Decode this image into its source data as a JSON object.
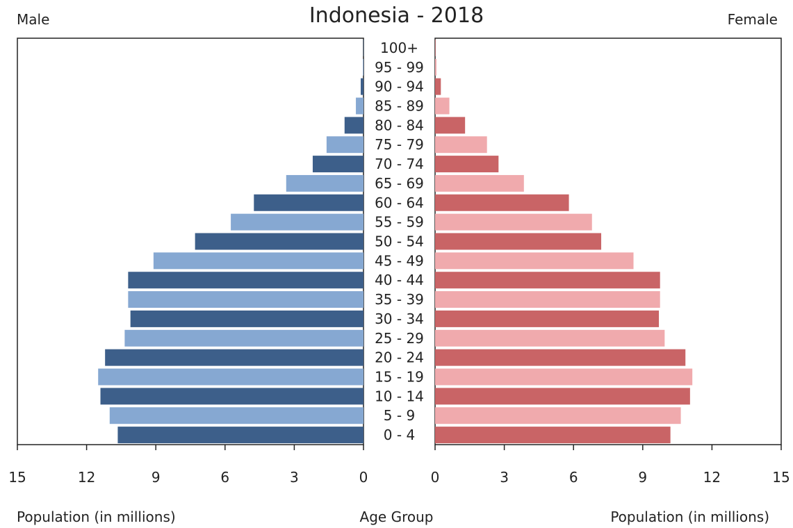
{
  "chart_data": {
    "type": "bar",
    "title": "Indonesia - 2018",
    "left_label": "Male",
    "right_label": "Female",
    "xlabel_left": "Population (in millions)",
    "xlabel_center": "Age Group",
    "xlabel_right": "Population (in millions)",
    "xlim": [
      0,
      15
    ],
    "xticks": [
      "15",
      "12",
      "9",
      "6",
      "3",
      "0"
    ],
    "xticks_right": [
      "0",
      "3",
      "6",
      "9",
      "12",
      "15"
    ],
    "categories": [
      "100+",
      "95 - 99",
      "90 - 94",
      "85 - 89",
      "80 - 84",
      "75 - 79",
      "70 - 74",
      "65 - 69",
      "60 - 64",
      "55 - 59",
      "50 - 54",
      "45 - 49",
      "40 - 44",
      "35 - 39",
      "30 - 34",
      "25 - 29",
      "20 - 24",
      "15 - 19",
      "10 - 14",
      "5 - 9",
      "0 - 4"
    ],
    "series": [
      {
        "name": "Male",
        "values": [
          0.01,
          0.03,
          0.12,
          0.33,
          0.82,
          1.6,
          2.2,
          3.35,
          4.75,
          5.75,
          7.3,
          9.1,
          10.2,
          10.2,
          10.1,
          10.35,
          11.2,
          11.5,
          11.4,
          11.0,
          10.65
        ]
      },
      {
        "name": "Female",
        "values": [
          0.02,
          0.06,
          0.25,
          0.62,
          1.3,
          2.25,
          2.75,
          3.85,
          5.8,
          6.8,
          7.2,
          8.6,
          9.75,
          9.75,
          9.7,
          9.95,
          10.85,
          11.15,
          11.05,
          10.65,
          10.2
        ]
      }
    ],
    "colors": {
      "male_dark": "#3d5f8a",
      "male_light": "#86a8d2",
      "female_dark": "#c96466",
      "female_light": "#f0aaad"
    },
    "grid": false,
    "legend": "none"
  }
}
